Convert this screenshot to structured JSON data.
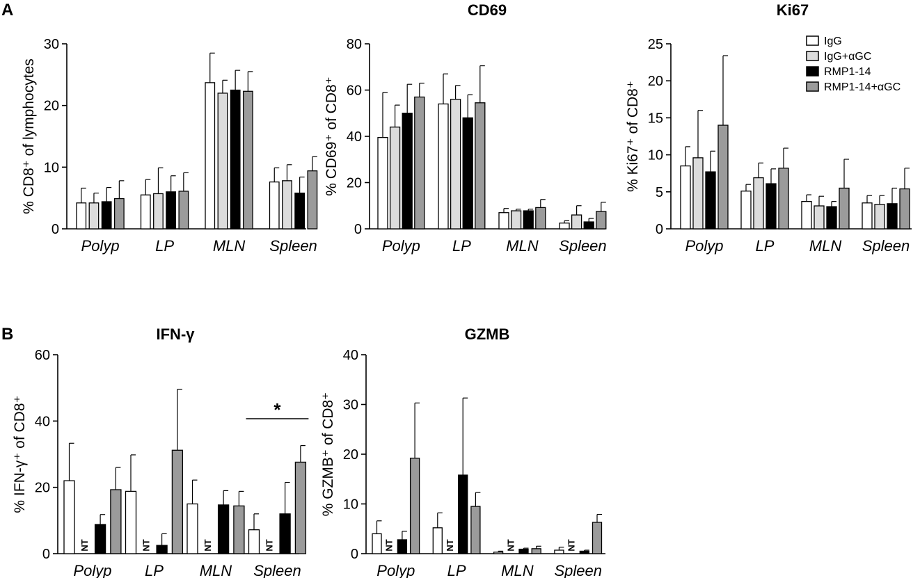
{
  "panels": {
    "A": "A",
    "B": "B"
  },
  "legend": {
    "labels": [
      "IgG",
      "IgG+αGC",
      "RMP1-14",
      "RMP1-14+αGC"
    ],
    "colors": [
      "#ffffff",
      "#dcdcdc",
      "#000000",
      "#9b9b9b"
    ]
  },
  "chart_data": [
    {
      "type": "bar",
      "panel": "A",
      "title": "",
      "ylabel": "% CD8⁺ of lymphocytes",
      "categories": [
        "Polyp",
        "LP",
        "MLN",
        "Spleen"
      ],
      "ylim": [
        0,
        30
      ],
      "yticks": [
        0,
        10,
        20,
        30
      ],
      "series": [
        {
          "name": "IgG",
          "values": [
            4.2,
            5.5,
            23.7,
            7.6
          ],
          "errors": [
            2.4,
            2.5,
            4.8,
            2.3
          ]
        },
        {
          "name": "IgG+αGC",
          "values": [
            4.2,
            5.7,
            22.0,
            7.8
          ],
          "errors": [
            1.6,
            4.2,
            2.1,
            2.6
          ]
        },
        {
          "name": "RMP1-14",
          "values": [
            4.4,
            6.0,
            22.5,
            5.8
          ],
          "errors": [
            2.3,
            2.6,
            3.2,
            2.6
          ]
        },
        {
          "name": "RMP1-14+αGC",
          "values": [
            4.9,
            6.1,
            22.3,
            9.4
          ],
          "errors": [
            2.9,
            3.0,
            3.2,
            2.3
          ]
        }
      ]
    },
    {
      "type": "bar",
      "panel": "A",
      "title": "CD69",
      "ylabel": "% CD69⁺ of CD8⁺",
      "categories": [
        "Polyp",
        "LP",
        "MLN",
        "Spleen"
      ],
      "ylim": [
        0,
        80
      ],
      "yticks": [
        0,
        20,
        40,
        60,
        80
      ],
      "series": [
        {
          "name": "IgG",
          "values": [
            39.5,
            54.0,
            7.0,
            2.5
          ],
          "errors": [
            19.5,
            13.0,
            1.8,
            1.0
          ]
        },
        {
          "name": "IgG+αGC",
          "values": [
            44.0,
            56.0,
            7.8,
            6.0
          ],
          "errors": [
            9.5,
            6.0,
            0.7,
            4.0
          ]
        },
        {
          "name": "RMP1-14",
          "values": [
            50.0,
            48.0,
            7.8,
            3.0
          ],
          "errors": [
            12.5,
            10.0,
            0.7,
            1.5
          ]
        },
        {
          "name": "RMP1-14+αGC",
          "values": [
            57.0,
            54.5,
            9.2,
            7.5
          ],
          "errors": [
            6.0,
            16.0,
            3.5,
            4.0
          ]
        }
      ]
    },
    {
      "type": "bar",
      "panel": "A",
      "title": "Ki67",
      "ylabel": "% Ki67⁺ of CD8⁺",
      "categories": [
        "Polyp",
        "LP",
        "MLN",
        "Spleen"
      ],
      "ylim": [
        0,
        25
      ],
      "yticks": [
        0,
        5,
        10,
        15,
        20,
        25
      ],
      "series": [
        {
          "name": "IgG",
          "values": [
            8.5,
            5.1,
            3.7,
            3.5
          ],
          "errors": [
            2.6,
            0.9,
            0.9,
            1.0
          ]
        },
        {
          "name": "IgG+αGC",
          "values": [
            9.6,
            6.9,
            3.1,
            3.3
          ],
          "errors": [
            6.4,
            2.0,
            1.3,
            1.2
          ]
        },
        {
          "name": "RMP1-14",
          "values": [
            7.7,
            6.1,
            3.0,
            3.4
          ],
          "errors": [
            2.8,
            2.0,
            0.7,
            2.1
          ]
        },
        {
          "name": "RMP1-14+αGC",
          "values": [
            14.0,
            8.2,
            5.5,
            5.4
          ],
          "errors": [
            9.4,
            2.7,
            3.9,
            2.8
          ]
        }
      ]
    },
    {
      "type": "bar",
      "panel": "B",
      "title": "IFN-γ",
      "ylabel": "% IFN-γ⁺ of CD8⁺",
      "categories": [
        "Polyp",
        "LP",
        "MLN",
        "Spleen"
      ],
      "ylim": [
        0,
        60
      ],
      "yticks": [
        0,
        20,
        40,
        60
      ],
      "series": [
        {
          "name": "IgG",
          "values": [
            22.0,
            18.8,
            15.0,
            7.2
          ],
          "errors": [
            11.3,
            11.0,
            7.2,
            4.8
          ]
        },
        {
          "name": "IgG+αGC",
          "values": [
            null,
            null,
            null,
            null
          ],
          "errors": [
            null,
            null,
            null,
            null
          ]
        },
        {
          "name": "RMP1-14",
          "values": [
            8.8,
            2.5,
            14.7,
            12.0
          ],
          "errors": [
            3.0,
            3.5,
            4.3,
            9.5
          ]
        },
        {
          "name": "RMP1-14+αGC",
          "values": [
            19.3,
            31.2,
            14.4,
            27.6
          ],
          "errors": [
            6.7,
            18.4,
            4.4,
            5.0
          ]
        }
      ],
      "na_label": "NT",
      "annotation": "*"
    },
    {
      "type": "bar",
      "panel": "B",
      "title": "GZMB",
      "ylabel": "% GZMB⁺ of CD8⁺",
      "categories": [
        "Polyp",
        "LP",
        "MLN",
        "Spleen"
      ],
      "ylim": [
        0,
        40
      ],
      "yticks": [
        0,
        10,
        20,
        30,
        40
      ],
      "series": [
        {
          "name": "IgG",
          "values": [
            4.0,
            5.2,
            0.3,
            0.7
          ],
          "errors": [
            2.6,
            3.0,
            0.2,
            0.6
          ]
        },
        {
          "name": "IgG+αGC",
          "values": [
            null,
            null,
            null,
            null
          ],
          "errors": [
            null,
            null,
            null,
            null
          ]
        },
        {
          "name": "RMP1-14",
          "values": [
            2.8,
            15.8,
            0.9,
            0.5
          ],
          "errors": [
            1.7,
            15.5,
            0.2,
            0.2
          ]
        },
        {
          "name": "RMP1-14+αGC",
          "values": [
            19.2,
            9.5,
            1.0,
            6.3
          ],
          "errors": [
            11.1,
            2.8,
            0.5,
            1.6
          ]
        }
      ],
      "na_label": "NT"
    }
  ]
}
